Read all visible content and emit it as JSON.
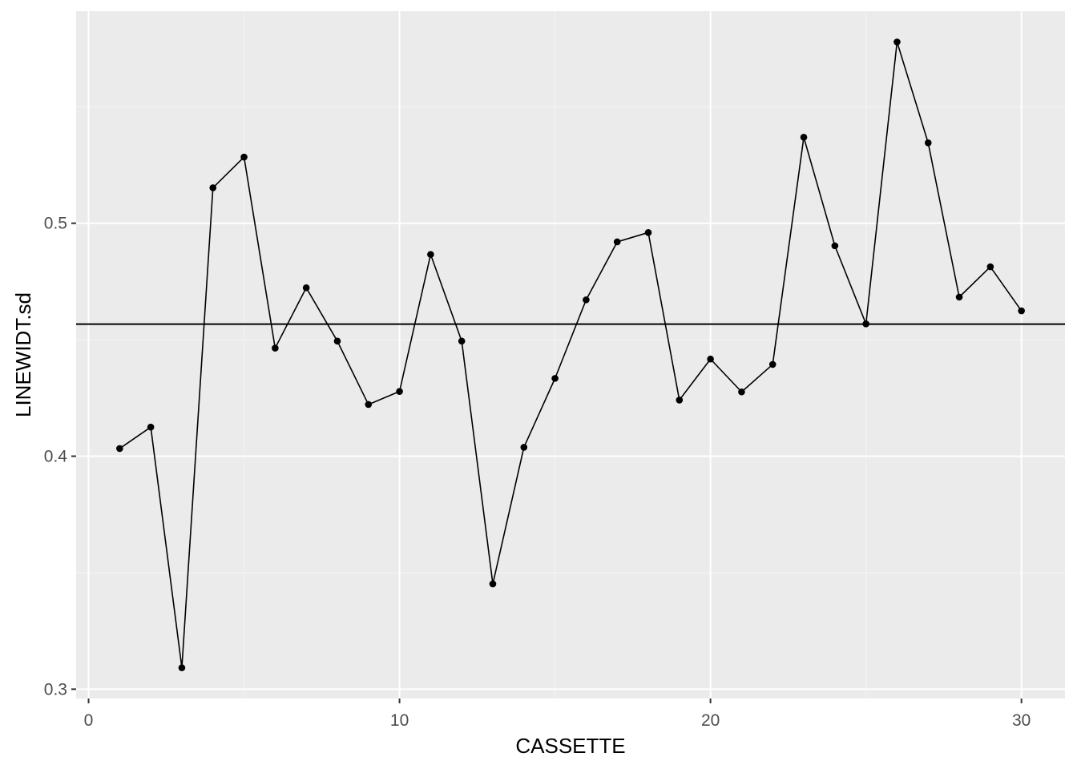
{
  "chart_data": {
    "type": "line",
    "title": "",
    "xlabel": "CASSETTE",
    "ylabel": "LINEWIDT.sd",
    "xlim": [
      -0.4,
      31.4
    ],
    "ylim": [
      0.296,
      0.591
    ],
    "x_ticks": [
      0,
      10,
      20,
      30
    ],
    "x_tick_labels": [
      "0",
      "10",
      "20",
      "30"
    ],
    "y_ticks": [
      0.3,
      0.4,
      0.5
    ],
    "y_tick_labels": [
      "0.3",
      "0.4",
      "0.5"
    ],
    "x_minor": [
      5,
      15,
      25
    ],
    "y_minor": [
      0.35,
      0.45,
      0.55
    ],
    "grid": true,
    "legend": "none",
    "series": [
      {
        "x": [
          1,
          2,
          3,
          4,
          5,
          6,
          7,
          8,
          9,
          10,
          11,
          12,
          13,
          14,
          15,
          16,
          17,
          18,
          19,
          20,
          21,
          22,
          23,
          24,
          25,
          26,
          27,
          28,
          29,
          30
        ],
        "values": [
          0.4033,
          0.4125,
          0.3092,
          0.5152,
          0.5284,
          0.4464,
          0.4723,
          0.4494,
          0.4222,
          0.4278,
          0.4866,
          0.4494,
          0.3452,
          0.4038,
          0.4334,
          0.4671,
          0.492,
          0.496,
          0.4241,
          0.4417,
          0.4276,
          0.4394,
          0.5369,
          0.4903,
          0.4568,
          0.5778,
          0.5345,
          0.4683,
          0.4813,
          0.4624
        ]
      }
    ],
    "reference_line": {
      "y": 0.4567
    },
    "colors": {
      "panel": "#EBEBEB",
      "grid_major": "#FFFFFF",
      "grid_minor": "#F5F5F5",
      "line": "#000000",
      "point": "#000000",
      "tick_text": "#4D4D4D",
      "tick_mark": "#333333"
    }
  }
}
